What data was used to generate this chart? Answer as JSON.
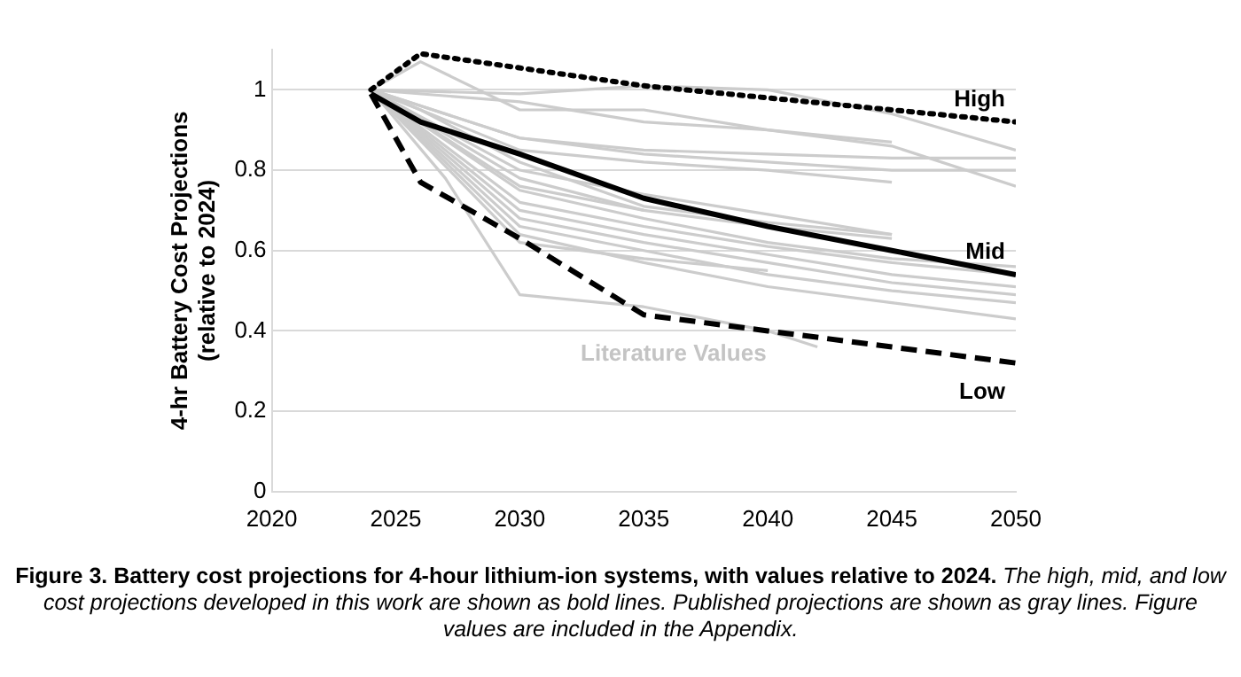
{
  "chart_data": {
    "type": "line",
    "title": "Figure 3. Battery cost projections for 4-hour lithium-ion systems, with values relative to 2024.",
    "ylabel": "4-hr Battery Cost Projections\n(relative to 2024)",
    "xlim": [
      2020,
      2050
    ],
    "xticks": [
      2020,
      2025,
      2030,
      2035,
      2040,
      2045,
      2050
    ],
    "ylim": [
      0,
      1.1
    ],
    "yticks": [
      0,
      0.2,
      0.4,
      0.6,
      0.8,
      1
    ],
    "grid": "y",
    "legend": false,
    "marker": "none",
    "annotations": [
      "Literature Values",
      "The high, mid, and low cost projections developed in this work are shown as bold lines. Published projections are shown as gray lines. Figure values are included in the Appendix."
    ],
    "series": [
      {
        "color": "#cccccc",
        "x": [
          2024,
          2026,
          2030,
          2035,
          2040,
          2045,
          2050
        ],
        "values": [
          1,
          1.07,
          0.95,
          0.95,
          0.9,
          0.86,
          0.76
        ]
      },
      {
        "color": "#cccccc",
        "x": [
          2024,
          2030,
          2035,
          2040,
          2045,
          2050
        ],
        "values": [
          1,
          0.99,
          1.01,
          1.0,
          0.94,
          0.85
        ]
      },
      {
        "color": "#cccccc",
        "x": [
          2024,
          2030,
          2035,
          2040,
          2045
        ],
        "values": [
          1,
          0.97,
          0.92,
          0.9,
          0.87
        ]
      },
      {
        "color": "#cccccc",
        "x": [
          2024,
          2030,
          2035,
          2040,
          2045,
          2050
        ],
        "values": [
          1,
          0.88,
          0.85,
          0.84,
          0.83,
          0.83
        ]
      },
      {
        "color": "#cccccc",
        "x": [
          2024,
          2030,
          2035,
          2040,
          2045,
          2050
        ],
        "values": [
          1,
          0.88,
          0.84,
          0.82,
          0.8,
          0.8
        ]
      },
      {
        "color": "#cccccc",
        "x": [
          2024,
          2030,
          2035,
          2040,
          2045
        ],
        "values": [
          1,
          0.85,
          0.82,
          0.8,
          0.77
        ]
      },
      {
        "color": "#cccccc",
        "x": [
          2024,
          2030,
          2035,
          2040,
          2045
        ],
        "values": [
          1,
          0.8,
          0.74,
          0.69,
          0.64
        ]
      },
      {
        "color": "#cccccc",
        "x": [
          2024,
          2030,
          2035,
          2040,
          2045
        ],
        "values": [
          1,
          0.78,
          0.7,
          0.66,
          0.63
        ]
      },
      {
        "color": "#cccccc",
        "x": [
          2024,
          2030,
          2035,
          2040,
          2045,
          2050
        ],
        "values": [
          1,
          0.75,
          0.68,
          0.62,
          0.58,
          0.56
        ]
      },
      {
        "color": "#cccccc",
        "x": [
          2024,
          2030,
          2035,
          2040,
          2045,
          2050
        ],
        "values": [
          1,
          0.72,
          0.66,
          0.61,
          0.57,
          0.54
        ]
      },
      {
        "color": "#cccccc",
        "x": [
          2024,
          2030,
          2035,
          2040,
          2045,
          2050
        ],
        "values": [
          1,
          0.7,
          0.64,
          0.59,
          0.54,
          0.51
        ]
      },
      {
        "color": "#cccccc",
        "x": [
          2024,
          2030,
          2035,
          2040,
          2045,
          2050
        ],
        "values": [
          1,
          0.68,
          0.62,
          0.57,
          0.52,
          0.49
        ]
      },
      {
        "color": "#cccccc",
        "x": [
          2024,
          2030,
          2035,
          2040,
          2045,
          2050
        ],
        "values": [
          1,
          0.66,
          0.6,
          0.54,
          0.5,
          0.47
        ]
      },
      {
        "color": "#cccccc",
        "x": [
          2024,
          2030,
          2035,
          2040,
          2045,
          2050
        ],
        "values": [
          1,
          0.64,
          0.57,
          0.51,
          0.47,
          0.43
        ]
      },
      {
        "color": "#cccccc",
        "x": [
          2024,
          2027,
          2030,
          2035,
          2040,
          2042
        ],
        "values": [
          1,
          0.78,
          0.49,
          0.46,
          0.4,
          0.36
        ]
      },
      {
        "color": "#cccccc",
        "x": [
          2024,
          2030,
          2035,
          2040
        ],
        "values": [
          1,
          0.62,
          0.58,
          0.55
        ]
      },
      {
        "color": "#cccccc",
        "x": [
          2024,
          2030,
          2035
        ],
        "values": [
          1,
          0.76,
          0.7
        ]
      },
      {
        "color": "#cccccc",
        "x": [
          2024,
          2026,
          2030,
          2035,
          2040,
          2045
        ],
        "values": [
          1,
          0.95,
          0.82,
          0.71,
          0.67,
          0.64
        ]
      },
      {
        "name": "High",
        "color": "#000000",
        "line_style": "dotted",
        "x": [
          2024,
          2026,
          2035,
          2050
        ],
        "values": [
          1,
          1.09,
          1.01,
          0.92
        ]
      },
      {
        "name": "Mid",
        "color": "#000000",
        "line_style": "solid",
        "x": [
          2024,
          2026,
          2030,
          2035,
          2040,
          2045,
          2050
        ],
        "values": [
          0.99,
          0.92,
          0.84,
          0.73,
          0.66,
          0.6,
          0.54
        ]
      },
      {
        "name": "Low",
        "color": "#000000",
        "line_style": "dashed",
        "x": [
          2024,
          2026,
          2030,
          2035,
          2040,
          2045,
          2050
        ],
        "values": [
          0.99,
          0.77,
          0.63,
          0.44,
          0.4,
          0.36,
          0.32
        ]
      }
    ]
  }
}
